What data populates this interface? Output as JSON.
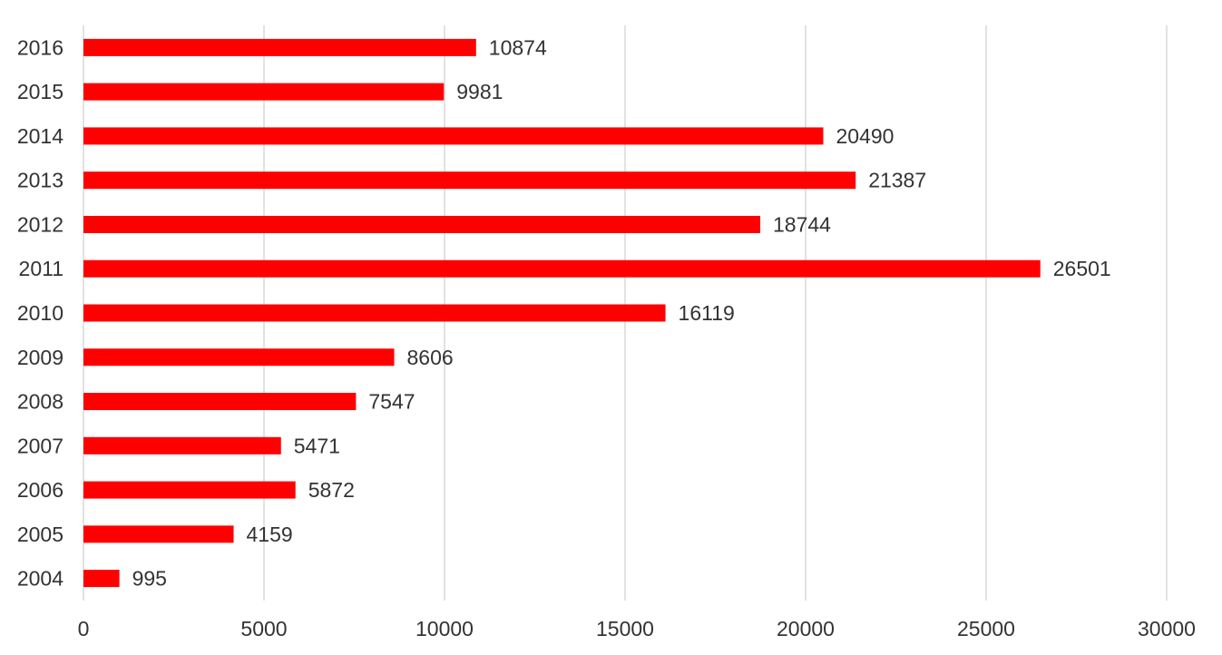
{
  "chart_data": {
    "type": "bar",
    "orientation": "horizontal",
    "categories": [
      "2016",
      "2015",
      "2014",
      "2013",
      "2012",
      "2011",
      "2010",
      "2009",
      "2008",
      "2007",
      "2006",
      "2005",
      "2004"
    ],
    "values": [
      10874,
      9981,
      20490,
      21387,
      18744,
      26501,
      16119,
      8606,
      7547,
      5471,
      5872,
      4159,
      995
    ],
    "data_labels": [
      "10874",
      "9981",
      "20490",
      "21387",
      "18744",
      "26501",
      "16119",
      "8606",
      "7547",
      "5471",
      "5872",
      "4159",
      "995"
    ],
    "xlim": [
      0,
      30000
    ],
    "x_ticks": [
      0,
      5000,
      10000,
      15000,
      20000,
      25000,
      30000
    ],
    "x_tick_labels": [
      "0",
      "5000",
      "10000",
      "15000",
      "20000",
      "25000",
      "30000"
    ],
    "title": "",
    "xlabel": "",
    "ylabel": "",
    "grid": "vertical",
    "legend": "none",
    "colors": {
      "bar": "#ff0000",
      "grid": "#d9d9d9",
      "text": "#333333"
    }
  }
}
